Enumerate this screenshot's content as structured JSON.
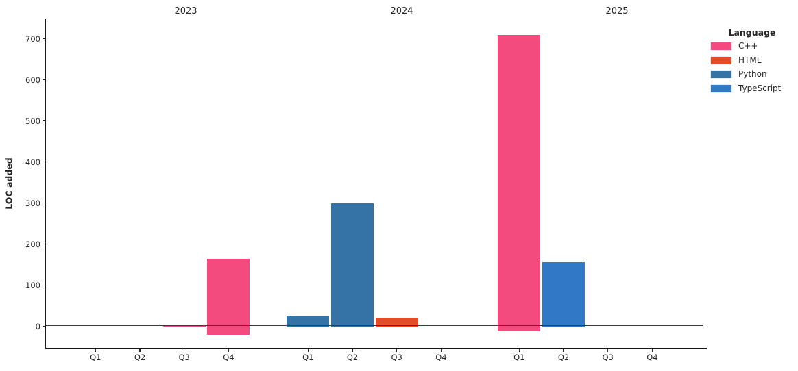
{
  "chart_data": {
    "type": "bar",
    "ylabel": "LOC added",
    "facet_titles": [
      "2023",
      "2024",
      "2025"
    ],
    "quarters": [
      "Q1",
      "Q2",
      "Q3",
      "Q4"
    ],
    "y_ticks": [
      0,
      100,
      200,
      300,
      400,
      500,
      600,
      700
    ],
    "ylim": [
      -55,
      750
    ],
    "grid": false,
    "legend": {
      "title": "Language",
      "position": "upper right",
      "entries": [
        {
          "label": "C++",
          "color": "#f34b7d"
        },
        {
          "label": "HTML",
          "color": "#e34c26"
        },
        {
          "label": "Python",
          "color": "#3572a5"
        },
        {
          "label": "TypeScript",
          "color": "#3178c6"
        }
      ]
    },
    "bars": [
      {
        "year": "2023",
        "quarter": "Q3",
        "language": "C++",
        "value": 3
      },
      {
        "year": "2023",
        "quarter": "Q4",
        "language": "C++",
        "value": 165
      },
      {
        "year": "2023",
        "quarter": "Q4",
        "language": "C++",
        "value": -20
      },
      {
        "year": "2024",
        "quarter": "Q1",
        "language": "Python",
        "value": 27
      },
      {
        "year": "2024",
        "quarter": "Q1",
        "language": "C++",
        "value": -2
      },
      {
        "year": "2024",
        "quarter": "Q2",
        "language": "Python",
        "value": 300
      },
      {
        "year": "2024",
        "quarter": "Q3",
        "language": "HTML",
        "value": 21
      },
      {
        "year": "2025",
        "quarter": "Q1",
        "language": "C++",
        "value": 710
      },
      {
        "year": "2025",
        "quarter": "Q1",
        "language": "C++",
        "value": -12
      },
      {
        "year": "2025",
        "quarter": "Q2",
        "language": "TypeScript",
        "value": 157
      }
    ]
  }
}
